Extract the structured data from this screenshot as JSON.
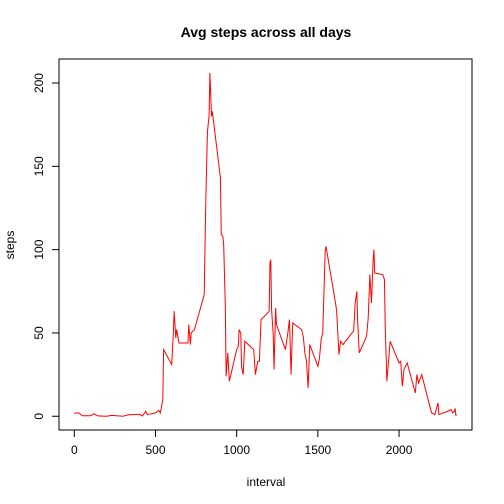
{
  "chart_data": {
    "type": "line",
    "title": "Avg steps across all days",
    "x_label": "interval",
    "y_label": "steps",
    "x": [
      0,
      25,
      50,
      100,
      120,
      145,
      200,
      230,
      300,
      330,
      400,
      420,
      440,
      450,
      500,
      520,
      530,
      545,
      550,
      600,
      610,
      615,
      625,
      630,
      645,
      700,
      705,
      715,
      720,
      740,
      800,
      810,
      820,
      830,
      835,
      845,
      850,
      900,
      905,
      915,
      920,
      930,
      935,
      945,
      955,
      1000,
      1010,
      1015,
      1025,
      1030,
      1040,
      1050,
      1105,
      1115,
      1130,
      1140,
      1150,
      1200,
      1205,
      1210,
      1215,
      1225,
      1230,
      1240,
      1245,
      1300,
      1315,
      1325,
      1335,
      1345,
      1400,
      1410,
      1420,
      1430,
      1440,
      1450,
      1500,
      1510,
      1520,
      1530,
      1545,
      1550,
      1600,
      1615,
      1630,
      1640,
      1655,
      1710,
      1720,
      1730,
      1740,
      1745,
      1755,
      1800,
      1810,
      1820,
      1830,
      1840,
      1845,
      1850,
      1900,
      1910,
      1915,
      1925,
      1935,
      1945,
      2000,
      2010,
      2020,
      2030,
      2050,
      2100,
      2110,
      2120,
      2140,
      2150,
      2200,
      2220,
      2240,
      2245,
      2300,
      2320,
      2330,
      2340,
      2345,
      2350,
      2355
    ],
    "series": [
      {
        "name": "steps",
        "color": "#ff0000",
        "values": [
          1.7,
          2.1,
          0.3,
          0.3,
          1.5,
          0.2,
          0,
          0.5,
          0,
          0.8,
          1.2,
          0.2,
          3,
          1,
          2,
          3.5,
          2,
          10,
          40,
          31,
          50,
          63,
          47,
          52,
          44,
          44,
          55,
          43,
          50,
          52,
          73,
          130,
          171,
          180,
          206,
          180,
          183,
          143,
          109,
          108,
          103,
          66,
          24,
          38,
          21,
          40,
          42,
          52,
          50,
          30,
          25,
          45,
          40,
          25,
          33,
          33,
          58,
          63,
          92,
          94,
          64,
          49,
          28,
          65,
          55,
          40,
          50,
          58,
          25,
          56,
          52,
          48,
          38,
          33,
          17,
          43,
          30,
          35,
          46,
          50,
          99,
          102,
          73,
          64,
          37,
          45,
          43,
          50,
          51,
          68,
          75,
          57,
          38,
          48,
          59,
          85,
          68,
          93,
          100,
          86,
          85,
          82,
          53,
          21,
          33,
          45,
          32,
          33,
          18,
          28,
          32,
          14,
          25,
          20,
          25,
          21,
          2,
          1,
          8,
          1,
          3,
          4,
          2,
          3,
          4.7,
          0.5,
          1
        ]
      }
    ],
    "xlim": [
      -94.2,
      2449.2
    ],
    "ylim": [
      -8.25,
      214.42
    ],
    "xticks": [
      0,
      500,
      1000,
      1500,
      2000
    ],
    "yticks": [
      0,
      50,
      100,
      150,
      200
    ],
    "grid": false
  }
}
